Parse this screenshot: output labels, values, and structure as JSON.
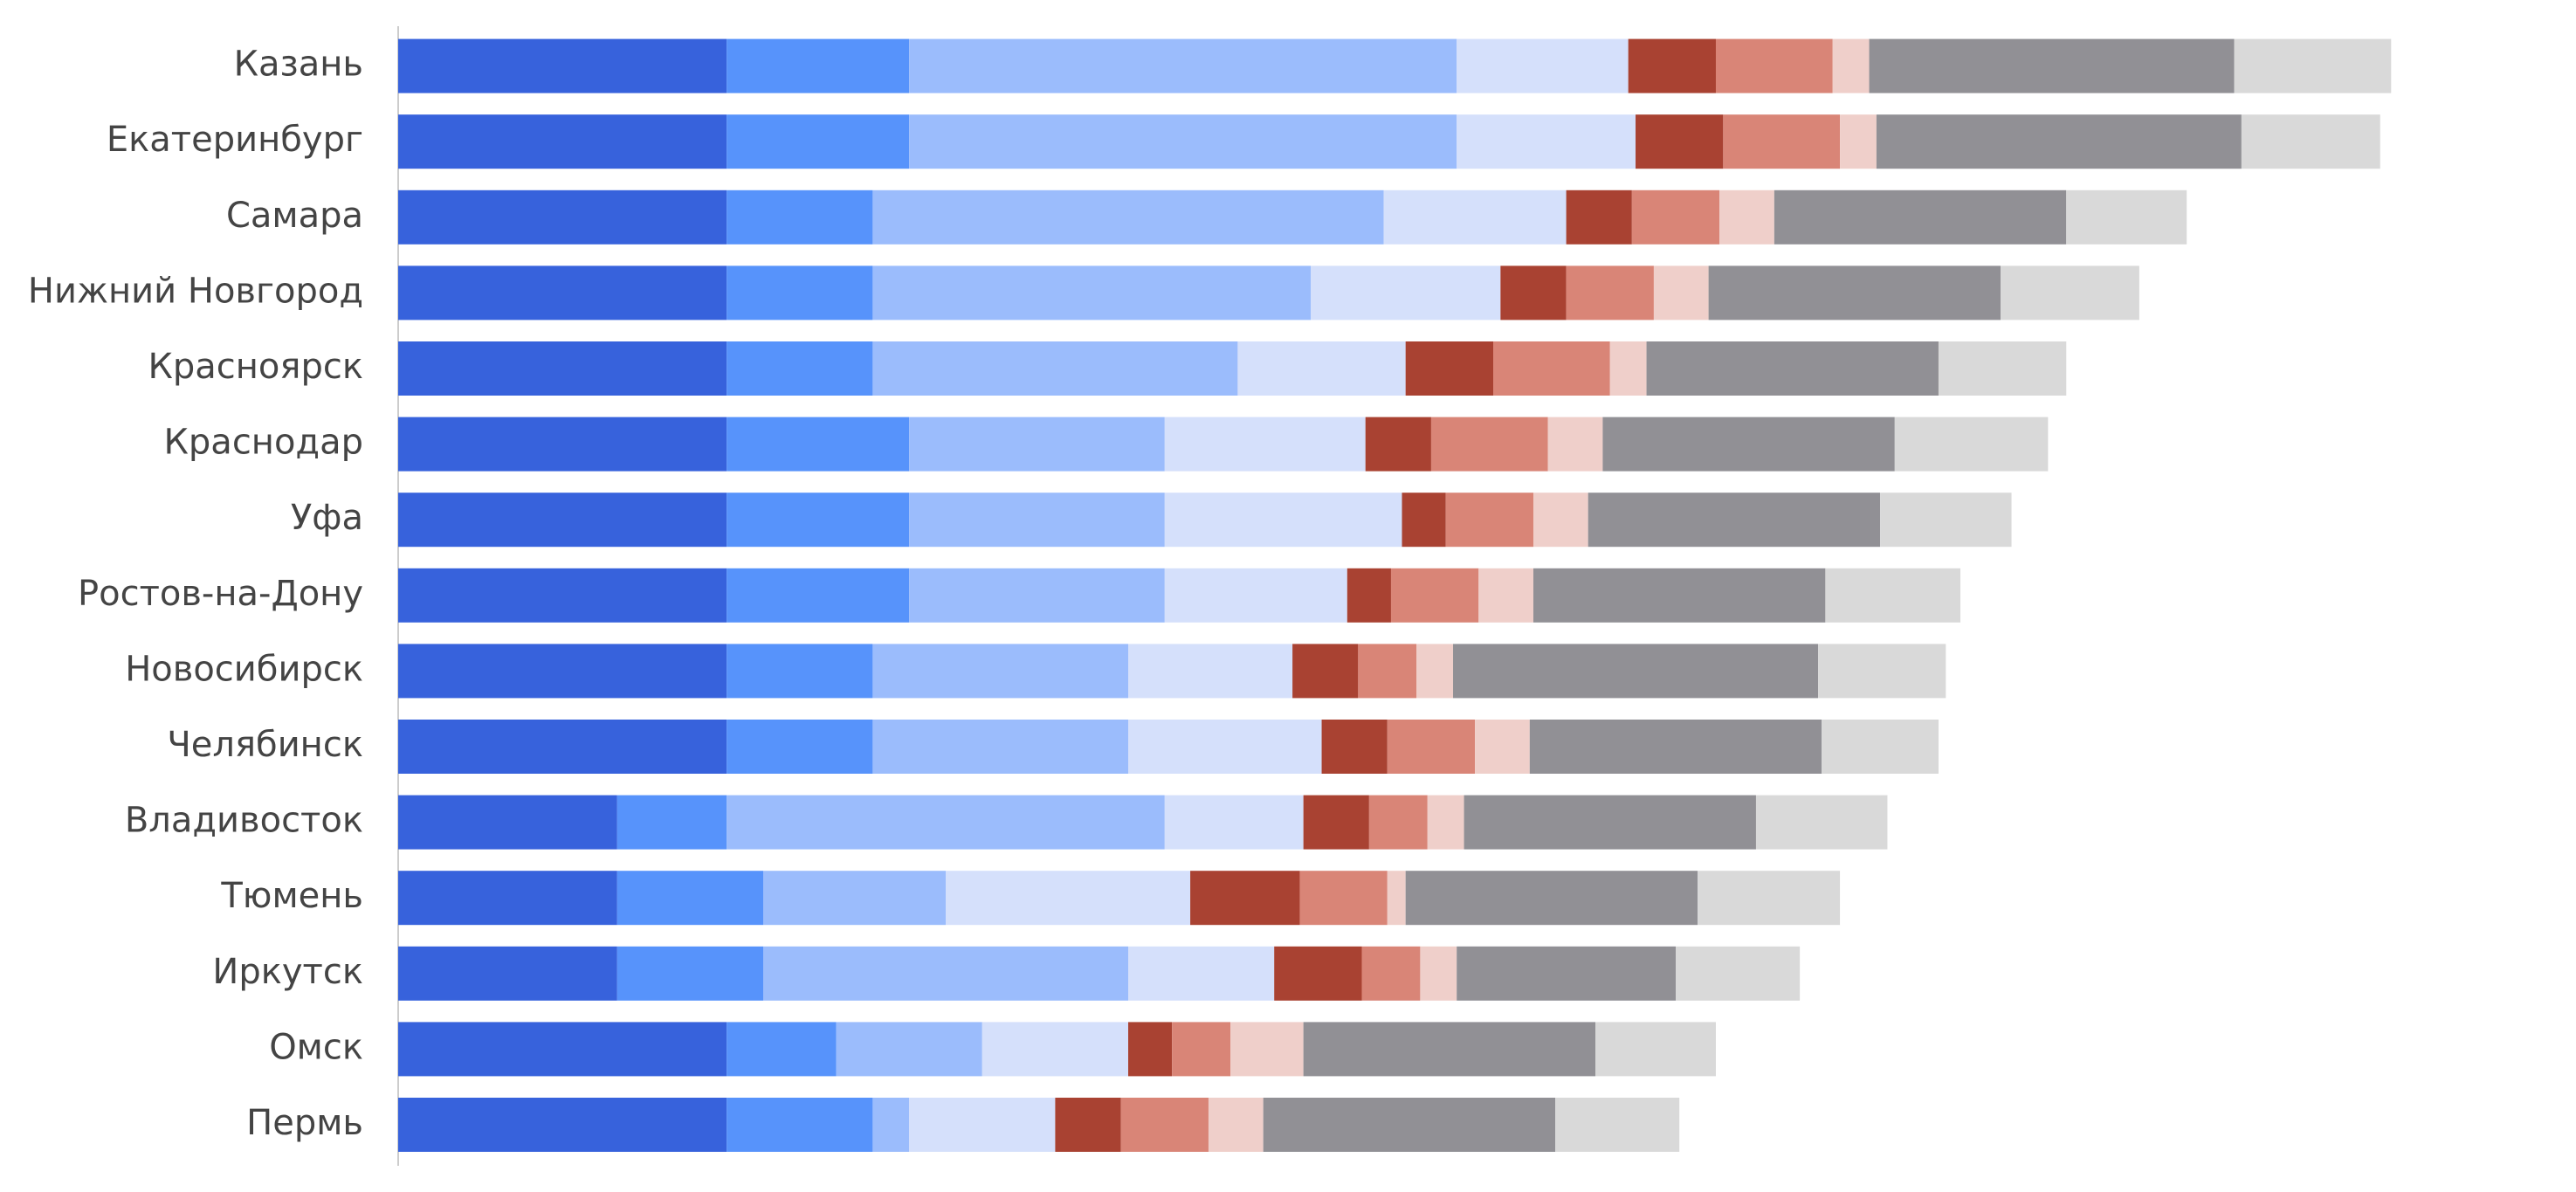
{
  "chart_data": {
    "type": "stacked-bar-horizontal",
    "categories": [
      "Казань",
      "Екатеринбург",
      "Самара",
      "Нижний Новгород",
      "Красноярск",
      "Краснодар",
      "Уфа",
      "Ростов-на-Дону",
      "Новосибирск",
      "Челябинск",
      "Владивосток",
      "Тюмень",
      "Иркутск",
      "Омск",
      "Пермь"
    ],
    "series": [
      {
        "color": "#3762dc",
        "values": [
          9,
          9,
          9,
          9,
          9,
          9,
          9,
          9,
          9,
          9,
          6,
          6,
          6,
          9,
          9
        ]
      },
      {
        "color": "#5793fb",
        "values": [
          5,
          5,
          4,
          4,
          4,
          5,
          5,
          5,
          4,
          4,
          3,
          4,
          4,
          3,
          4
        ]
      },
      {
        "color": "#9bbcfc",
        "values": [
          15,
          15,
          14,
          12,
          10,
          7,
          7,
          7,
          7,
          7,
          12,
          5,
          10,
          4,
          1
        ]
      },
      {
        "color": "#d5e0fb",
        "values": [
          4.7,
          4.9,
          5,
          5.2,
          4.6,
          5.5,
          6.5,
          5,
          4.5,
          5.3,
          3.8,
          6.7,
          4,
          4,
          4
        ]
      },
      {
        "color": "#a94232",
        "values": [
          2.4,
          2.4,
          1.8,
          1.8,
          2.4,
          1.8,
          1.2,
          1.2,
          1.8,
          1.8,
          1.8,
          3,
          2.4,
          1.2,
          1.8
        ]
      },
      {
        "color": "#d98577",
        "values": [
          3.2,
          3.2,
          2.4,
          2.4,
          3.2,
          3.2,
          2.4,
          2.4,
          1.6,
          2.4,
          1.6,
          2.4,
          1.6,
          1.6,
          2.4
        ]
      },
      {
        "color": "#efcfca",
        "values": [
          1,
          1,
          1.5,
          1.5,
          1,
          1.5,
          1.5,
          1.5,
          1,
          1.5,
          1,
          0.5,
          1,
          2,
          1.5
        ]
      },
      {
        "color": "#919095",
        "values": [
          10,
          10,
          8,
          8,
          8,
          8,
          8,
          8,
          10,
          8,
          8,
          8,
          6,
          8,
          8
        ]
      },
      {
        "color": "#d9d9d9",
        "values": [
          4.3,
          3.8,
          3.3,
          3.8,
          3.5,
          4.2,
          3.6,
          3.7,
          3.5,
          3.2,
          3.6,
          3.9,
          3.4,
          3.3,
          3.4
        ]
      }
    ]
  }
}
